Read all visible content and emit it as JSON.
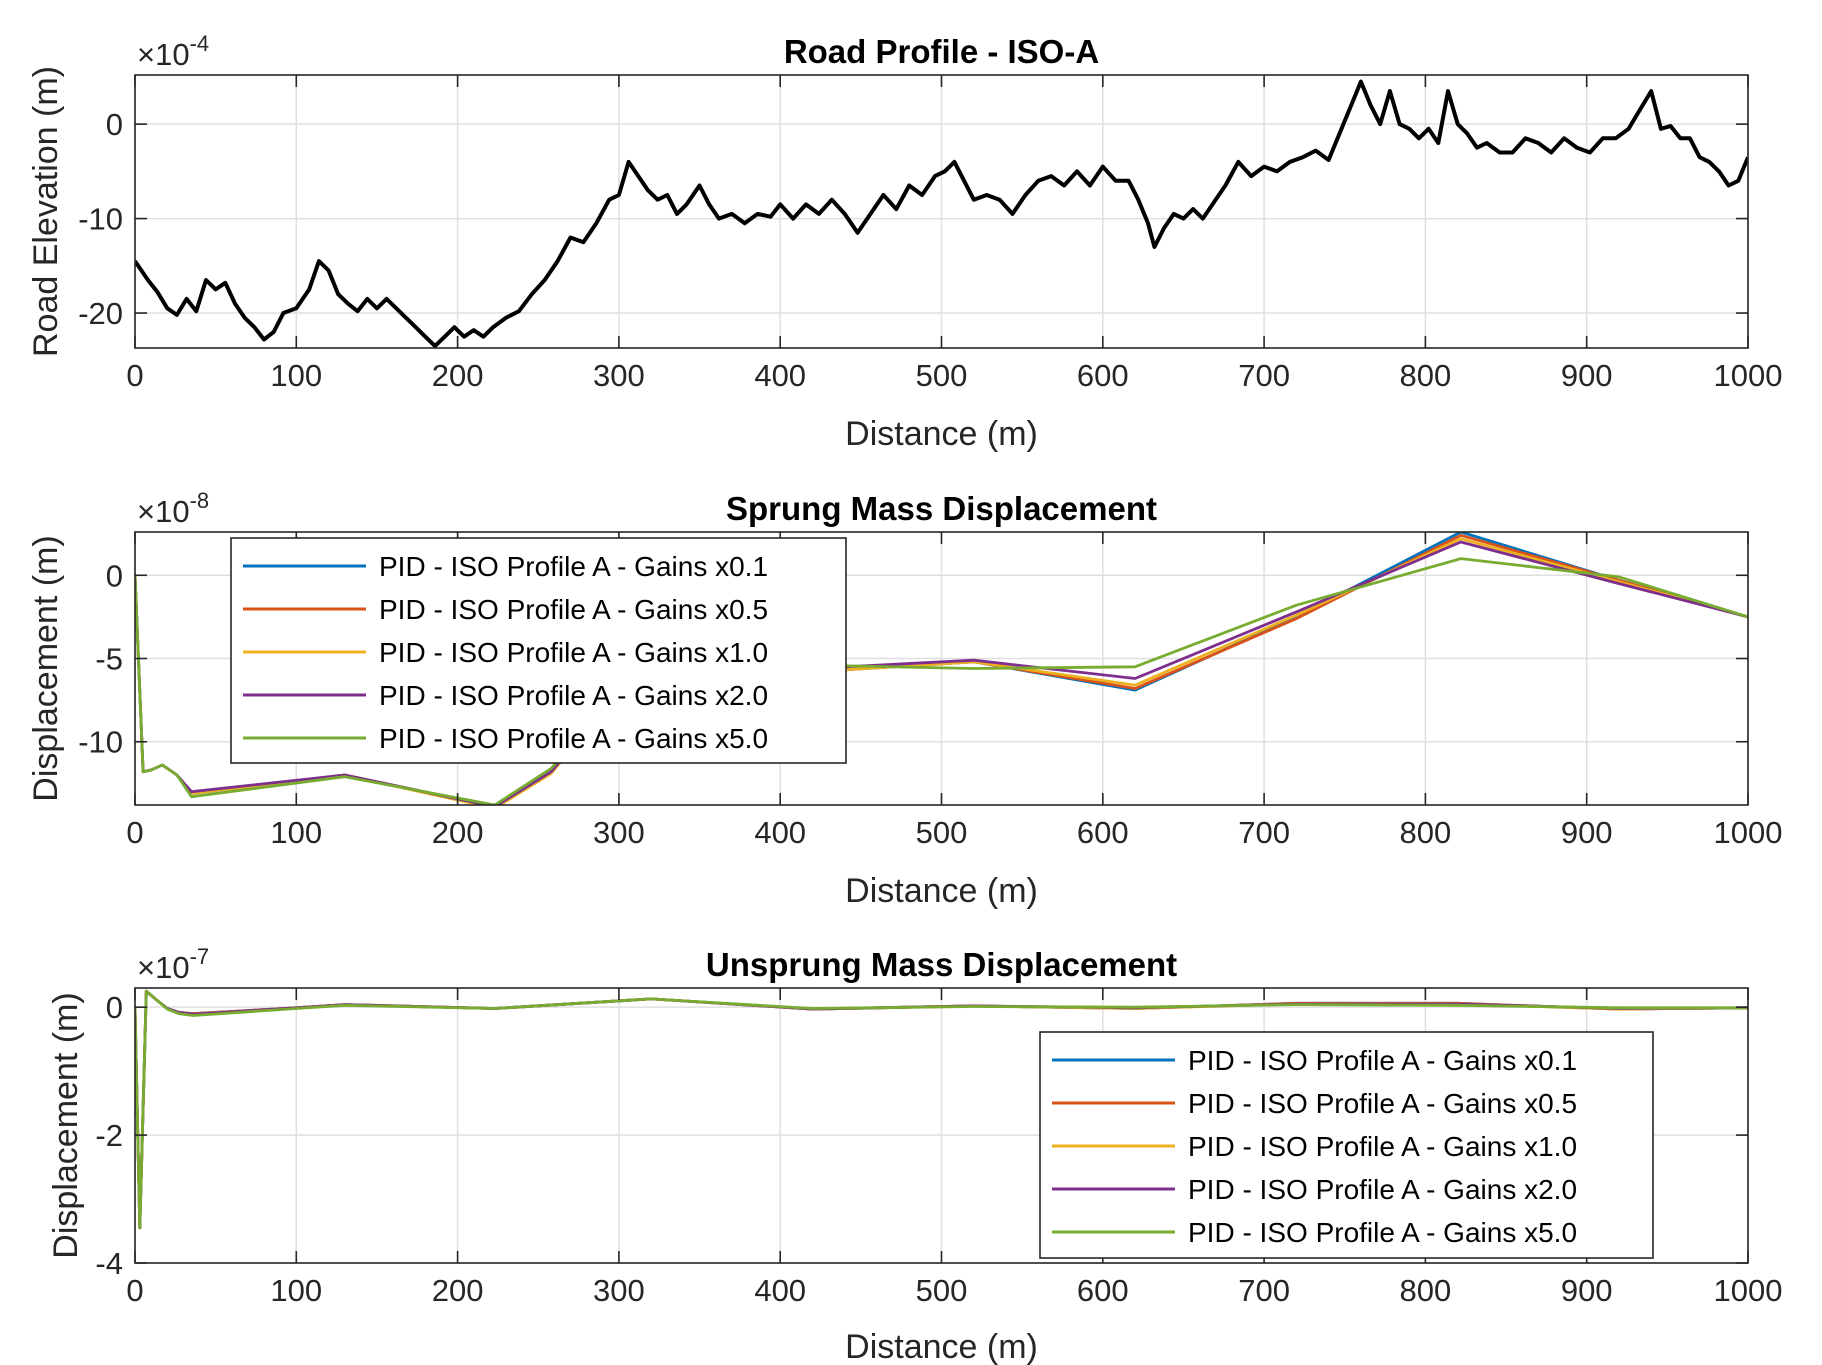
{
  "chart_data": [
    {
      "type": "line",
      "title": "Road Profile - ISO-A",
      "xlabel": "Distance (m)",
      "ylabel": "Road Elevation (m)",
      "exponent_base": "×10",
      "exponent_power": "-4",
      "xlim": [
        0,
        1000
      ],
      "ylim": [
        -23.7,
        5.2
      ],
      "xticks": [
        0,
        100,
        200,
        300,
        400,
        500,
        600,
        700,
        800,
        900,
        1000
      ],
      "yticks": [
        -20,
        -10,
        0
      ],
      "grid": true,
      "series": [
        {
          "name": "Road Profile",
          "color": "#000000",
          "x": [
            0,
            8,
            14,
            20,
            26,
            32,
            38,
            44,
            50,
            56,
            62,
            68,
            74,
            80,
            86,
            92,
            100,
            108,
            114,
            120,
            126,
            132,
            138,
            144,
            150,
            156,
            162,
            168,
            174,
            180,
            186,
            192,
            198,
            204,
            210,
            216,
            222,
            230,
            238,
            246,
            254,
            262,
            270,
            278,
            286,
            294,
            300,
            306,
            312,
            318,
            324,
            330,
            336,
            342,
            350,
            356,
            362,
            370,
            378,
            386,
            394,
            400,
            408,
            416,
            424,
            432,
            440,
            448,
            456,
            464,
            472,
            480,
            488,
            496,
            502,
            508,
            514,
            520,
            528,
            536,
            544,
            552,
            560,
            568,
            576,
            584,
            592,
            600,
            608,
            616,
            622,
            628,
            632,
            638,
            644,
            650,
            656,
            662,
            668,
            676,
            684,
            692,
            700,
            708,
            716,
            724,
            732,
            740,
            748,
            754,
            760,
            766,
            772,
            778,
            784,
            790,
            796,
            802,
            808,
            814,
            820,
            826,
            832,
            838,
            846,
            854,
            862,
            870,
            878,
            886,
            894,
            902,
            910,
            918,
            926,
            934,
            940,
            946,
            952,
            958,
            964,
            970,
            976,
            982,
            988,
            994,
            1000
          ],
          "values": [
            -14.5,
            -16.5,
            -17.8,
            -19.5,
            -20.2,
            -18.5,
            -19.8,
            -16.5,
            -17.5,
            -16.8,
            -19,
            -20.5,
            -21.5,
            -22.8,
            -22,
            -20,
            -19.5,
            -17.5,
            -14.5,
            -15.5,
            -18,
            -19,
            -19.8,
            -18.5,
            -19.5,
            -18.5,
            -19.5,
            -20.5,
            -21.5,
            -22.5,
            -23.5,
            -22.5,
            -21.5,
            -22.5,
            -21.8,
            -22.5,
            -21.5,
            -20.5,
            -19.8,
            -18,
            -16.5,
            -14.5,
            -12,
            -12.5,
            -10.5,
            -8,
            -7.5,
            -4,
            -5.5,
            -7,
            -8,
            -7.5,
            -9.5,
            -8.5,
            -6.5,
            -8.5,
            -10,
            -9.5,
            -10.5,
            -9.5,
            -9.8,
            -8.5,
            -10,
            -8.5,
            -9.5,
            -8,
            -9.5,
            -11.5,
            -9.5,
            -7.5,
            -9,
            -6.5,
            -7.5,
            -5.5,
            -5,
            -4,
            -6,
            -8,
            -7.5,
            -8,
            -9.5,
            -7.5,
            -6,
            -5.5,
            -6.5,
            -5,
            -6.5,
            -4.5,
            -6,
            -6,
            -8,
            -10.5,
            -13,
            -11,
            -9.5,
            -10,
            -9,
            -10,
            -8.5,
            -6.5,
            -4,
            -5.5,
            -4.5,
            -5,
            -4,
            -3.5,
            -2.8,
            -3.8,
            -0.5,
            2,
            4.5,
            2,
            0,
            3.5,
            0,
            -0.5,
            -1.5,
            -0.5,
            -2,
            3.5,
            0,
            -1,
            -2.5,
            -2,
            -3,
            -3,
            -1.5,
            -2,
            -3,
            -1.5,
            -2.5,
            -3,
            -1.5,
            -1.5,
            -0.5,
            1.8,
            3.5,
            -0.5,
            -0.2,
            -1.5,
            -1.5,
            -3.5,
            -4,
            -5,
            -6.5,
            -6,
            -3.5
          ]
        }
      ]
    },
    {
      "type": "line",
      "title": "Sprung Mass Displacement",
      "xlabel": "Distance (m)",
      "ylabel": "Displacement (m)",
      "exponent_base": "×10",
      "exponent_power": "-8",
      "xlim": [
        0,
        1000
      ],
      "ylim": [
        -13.8,
        2.6
      ],
      "xticks": [
        0,
        100,
        200,
        300,
        400,
        500,
        600,
        700,
        800,
        900,
        1000
      ],
      "yticks": [
        -10,
        -5,
        0
      ],
      "grid": true,
      "legend": "top-left",
      "series": [
        {
          "name": "PID - ISO Profile A - Gains x0.1",
          "color": "#0072BD",
          "x": [
            0,
            5,
            10,
            17,
            26,
            35,
            130,
            223,
            258,
            300,
            420,
            520,
            620,
            720,
            822,
            920,
            1000
          ],
          "values": [
            0,
            -11.8,
            -11.7,
            -11.4,
            -12,
            -13.1,
            -12,
            -13.9,
            -11.8,
            -7,
            -5.8,
            -5.2,
            -6.9,
            -2.5,
            2.6,
            -0.3,
            -2.5
          ]
        },
        {
          "name": "PID - ISO Profile A - Gains x0.5",
          "color": "#D95319",
          "x": [
            0,
            5,
            10,
            17,
            26,
            35,
            130,
            223,
            258,
            300,
            420,
            520,
            620,
            720,
            822,
            920,
            1000
          ],
          "values": [
            0,
            -11.8,
            -11.7,
            -11.4,
            -12,
            -13.1,
            -12,
            -13.9,
            -11.8,
            -7,
            -5.8,
            -5.2,
            -6.8,
            -2.6,
            2.4,
            -0.3,
            -2.5
          ]
        },
        {
          "name": "PID - ISO Profile A - Gains x1.0",
          "color": "#EDB120",
          "x": [
            0,
            5,
            10,
            17,
            26,
            35,
            130,
            223,
            258,
            300,
            420,
            520,
            620,
            720,
            822,
            920,
            1000
          ],
          "values": [
            0,
            -11.8,
            -11.7,
            -11.4,
            -12,
            -13.1,
            -12,
            -14,
            -11.9,
            -7,
            -5.8,
            -5.2,
            -6.6,
            -2.4,
            2.2,
            -0.4,
            -2.5
          ]
        },
        {
          "name": "PID - ISO Profile A - Gains x2.0",
          "color": "#7E2F8E",
          "x": [
            0,
            5,
            10,
            17,
            26,
            35,
            130,
            223,
            258,
            300,
            420,
            520,
            620,
            720,
            822,
            920,
            1000
          ],
          "values": [
            0,
            -11.8,
            -11.7,
            -11.4,
            -12,
            -13,
            -12,
            -13.9,
            -11.8,
            -7,
            -5.6,
            -5.1,
            -6.2,
            -2.2,
            2,
            -0.5,
            -2.5
          ]
        },
        {
          "name": "PID - ISO Profile A - Gains x5.0",
          "color": "#77AC30",
          "x": [
            0,
            5,
            10,
            17,
            26,
            35,
            130,
            223,
            258,
            300,
            420,
            520,
            620,
            720,
            822,
            920,
            1000
          ],
          "values": [
            0,
            -11.8,
            -11.7,
            -11.4,
            -12,
            -13.3,
            -12.1,
            -13.8,
            -11.6,
            -7,
            -5.4,
            -5.6,
            -5.5,
            -1.8,
            1,
            -0.1,
            -2.5
          ]
        }
      ]
    },
    {
      "type": "line",
      "title": "Unsprung Mass Displacement",
      "xlabel": "Distance (m)",
      "ylabel": "Displacement (m)",
      "exponent_base": "×10",
      "exponent_power": "-7",
      "xlim": [
        0,
        1000
      ],
      "ylim": [
        -4,
        0.3
      ],
      "xticks": [
        0,
        100,
        200,
        300,
        400,
        500,
        600,
        700,
        800,
        900,
        1000
      ],
      "yticks": [
        -4,
        -2,
        0
      ],
      "grid": true,
      "legend": "bottom-right",
      "series": [
        {
          "name": "PID - ISO Profile A - Gains x0.1",
          "color": "#0072BD",
          "x": [
            0,
            3,
            7,
            14,
            20,
            27,
            36,
            100,
            130,
            223,
            320,
            420,
            520,
            620,
            720,
            820,
            920,
            1000
          ],
          "values": [
            0,
            -3.45,
            0.25,
            0.1,
            -0.02,
            -0.08,
            -0.1,
            -0.01,
            0.04,
            -0.02,
            0.13,
            -0.03,
            0.02,
            -0.02,
            0.06,
            0.06,
            -0.03,
            -0.01
          ]
        },
        {
          "name": "PID - ISO Profile A - Gains x0.5",
          "color": "#D95319",
          "x": [
            0,
            3,
            7,
            14,
            20,
            27,
            36,
            100,
            130,
            223,
            320,
            420,
            520,
            620,
            720,
            820,
            920,
            1000
          ],
          "values": [
            0,
            -3.45,
            0.25,
            0.1,
            -0.02,
            -0.08,
            -0.1,
            -0.01,
            0.04,
            -0.02,
            0.13,
            -0.03,
            0.02,
            -0.02,
            0.06,
            0.06,
            -0.03,
            -0.01
          ]
        },
        {
          "name": "PID - ISO Profile A - Gains x1.0",
          "color": "#EDB120",
          "x": [
            0,
            3,
            7,
            14,
            20,
            27,
            36,
            100,
            130,
            223,
            320,
            420,
            520,
            620,
            720,
            820,
            920,
            1000
          ],
          "values": [
            0,
            -3.45,
            0.25,
            0.1,
            -0.02,
            -0.08,
            -0.11,
            -0.01,
            0.04,
            -0.02,
            0.13,
            -0.03,
            0.02,
            -0.02,
            0.05,
            0.05,
            -0.03,
            -0.01
          ]
        },
        {
          "name": "PID - ISO Profile A - Gains x2.0",
          "color": "#7E2F8E",
          "x": [
            0,
            3,
            7,
            14,
            20,
            27,
            36,
            100,
            130,
            223,
            320,
            420,
            520,
            620,
            720,
            820,
            920,
            1000
          ],
          "values": [
            0,
            -3.45,
            0.25,
            0.1,
            -0.02,
            -0.08,
            -0.11,
            -0.01,
            0.04,
            -0.02,
            0.13,
            -0.03,
            0.02,
            -0.01,
            0.05,
            0.05,
            -0.02,
            -0.01
          ]
        },
        {
          "name": "PID - ISO Profile A - Gains x5.0",
          "color": "#77AC30",
          "x": [
            0,
            3,
            7,
            14,
            20,
            27,
            36,
            100,
            130,
            223,
            320,
            420,
            520,
            620,
            720,
            820,
            920,
            1000
          ],
          "values": [
            0,
            -3.45,
            0.25,
            0.1,
            -0.03,
            -0.1,
            -0.13,
            -0.02,
            0.03,
            -0.02,
            0.13,
            -0.02,
            0.01,
            0,
            0.04,
            0.03,
            -0.01,
            -0.01
          ]
        }
      ]
    }
  ]
}
